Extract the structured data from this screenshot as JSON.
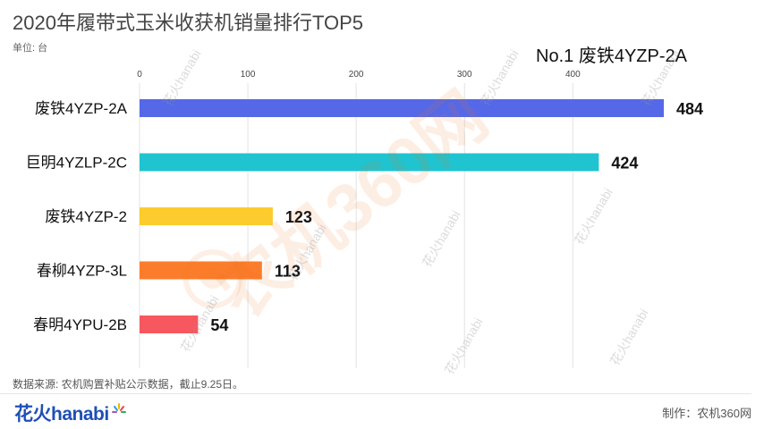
{
  "header": {
    "title": "2020年履带式玉米收获机销量排行TOP5",
    "unit": "单位: 台",
    "leader": "No.1 废铁4YZP-2A"
  },
  "chart_data": {
    "type": "bar",
    "orientation": "horizontal",
    "categories": [
      "废铁4YZP-2A",
      "巨明4YZLP-2C",
      "废铁4YZP-2",
      "春柳4YZP-3L",
      "春明4YPU-2B"
    ],
    "values": [
      484,
      424,
      123,
      113,
      54
    ],
    "colors": [
      "#5468e8",
      "#1fc4d0",
      "#fccb2e",
      "#fb7d2c",
      "#f7575f"
    ],
    "xlim": [
      0,
      484
    ],
    "xticks": [
      0,
      100,
      200,
      300,
      400
    ],
    "grid": true,
    "xaxis_position": "top"
  },
  "footer": {
    "source": "数据来源: 农机购置补贴公示数据，截止9.25日。",
    "brand_text": "花火hanabi",
    "credit": "制作：农机360网"
  },
  "watermark": {
    "main_text": "农机360网",
    "tile_text": "花火hanabi"
  }
}
